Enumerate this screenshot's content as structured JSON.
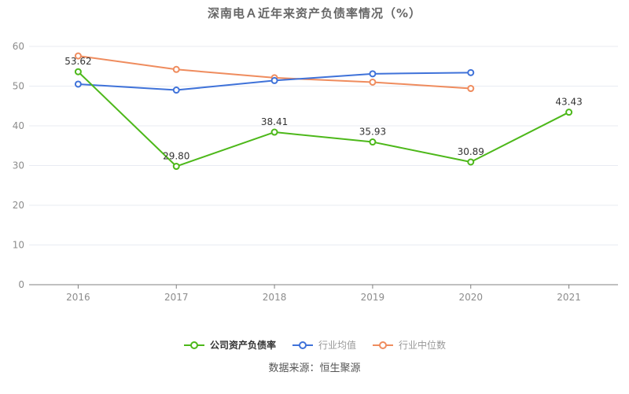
{
  "chart_data": {
    "type": "line",
    "title": "深南电Ａ近年来资产负债率情况（%）",
    "categories": [
      "2016",
      "2017",
      "2018",
      "2019",
      "2020",
      "2021"
    ],
    "series": [
      {
        "key": "company",
        "name": "公司资产负债率",
        "color": "#4db81a",
        "values": [
          53.62,
          29.8,
          38.41,
          35.93,
          30.89,
          43.43
        ],
        "show_labels": true,
        "label_decimals": 2
      },
      {
        "key": "industry-mean",
        "name": "行业均值",
        "color": "#3f72d9",
        "values": [
          50.5,
          49.0,
          51.4,
          53.1,
          53.4,
          null
        ],
        "show_labels": false
      },
      {
        "key": "industry-median",
        "name": "行业中位数",
        "color": "#ef8c5e",
        "values": [
          57.6,
          54.2,
          52.1,
          51.0,
          49.4,
          null
        ],
        "show_labels": false
      }
    ],
    "ylim": [
      0,
      60
    ],
    "yticks": [
      0,
      10,
      20,
      30,
      40,
      50,
      60
    ],
    "xlabel": "",
    "ylabel": "",
    "grid": true,
    "legend_position": "bottom",
    "source": "数据来源：恒生聚源",
    "colors": {
      "grid": "#e8ebf2",
      "axis": "#808080",
      "tick_label": "#8c8c8c",
      "value_label": "#333333",
      "title": "#666666",
      "legend_primary": "#333333",
      "legend_muted": "#999999",
      "background": "#ffffff"
    }
  }
}
